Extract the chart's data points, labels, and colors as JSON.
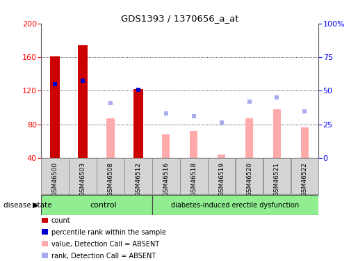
{
  "title": "GDS1393 / 1370656_a_at",
  "samples": [
    "GSM46500",
    "GSM46503",
    "GSM46508",
    "GSM46512",
    "GSM46516",
    "GSM46518",
    "GSM46519",
    "GSM46520",
    "GSM46521",
    "GSM46522"
  ],
  "count_values": [
    161,
    174,
    null,
    122,
    null,
    null,
    null,
    null,
    null,
    null
  ],
  "count_color": "#cc0000",
  "percentile_values": [
    128,
    132,
    null,
    121,
    null,
    null,
    null,
    null,
    null,
    null
  ],
  "percentile_color": "#0000cc",
  "absent_value": [
    null,
    null,
    87,
    null,
    68,
    72,
    44,
    87,
    98,
    76
  ],
  "absent_value_color": "#ffaaaa",
  "absent_rank": [
    null,
    null,
    105,
    null,
    93,
    90,
    82,
    107,
    112,
    95
  ],
  "absent_rank_color": "#aaaaee",
  "ylim_left": [
    40,
    200
  ],
  "ylim_right": [
    0,
    100
  ],
  "yticks_left": [
    40,
    80,
    120,
    160,
    200
  ],
  "yticks_right": [
    0,
    25,
    50,
    75,
    100
  ],
  "yticklabels_right": [
    "0",
    "25",
    "50",
    "75",
    "100%"
  ],
  "control_label": "control",
  "disease_label": "diabetes-induced erectile dysfunction",
  "disease_state_label": "disease state",
  "legend_items": [
    {
      "label": "count",
      "color": "#cc0000"
    },
    {
      "label": "percentile rank within the sample",
      "color": "#0000cc"
    },
    {
      "label": "value, Detection Call = ABSENT",
      "color": "#ffaaaa"
    },
    {
      "label": "rank, Detection Call = ABSENT",
      "color": "#aaaaee"
    }
  ],
  "bar_width": 0.35,
  "absent_bar_width": 0.28,
  "background_color": "#ffffff",
  "plot_bg_color": "#ffffff",
  "control_bg": "#90ee90",
  "disease_bg": "#90ee90",
  "n_control": 4,
  "n_disease": 6
}
